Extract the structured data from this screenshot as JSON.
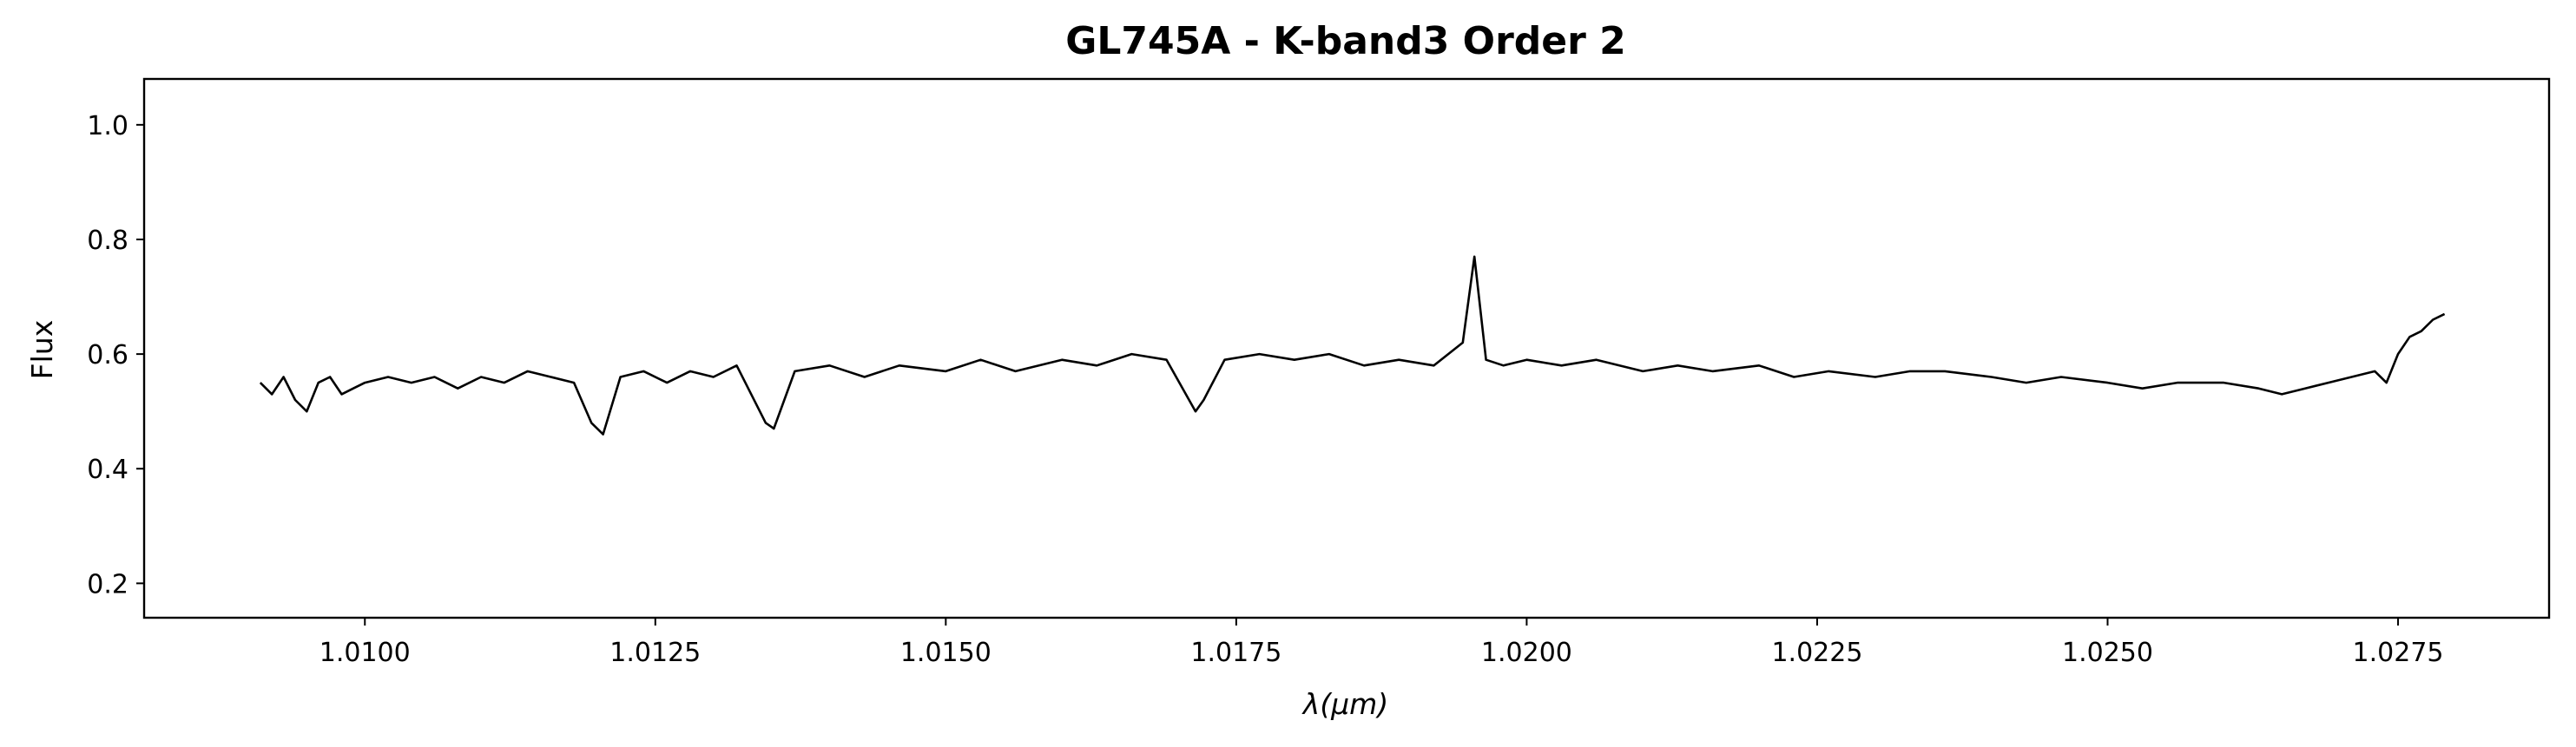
{
  "chart_data": {
    "type": "line",
    "title": "GL745A - K-band3 Order 2",
    "xlabel_symbol": "λ",
    "xlabel_unit": "(μm)",
    "ylabel": "Flux",
    "xlim": [
      1.0081,
      1.0288
    ],
    "ylim": [
      0.14,
      1.08
    ],
    "xticks": [
      1.01,
      1.0125,
      1.015,
      1.0175,
      1.02,
      1.0225,
      1.025,
      1.0275
    ],
    "xtick_labels": [
      "1.0100",
      "1.0125",
      "1.0150",
      "1.0175",
      "1.0200",
      "1.0225",
      "1.0250",
      "1.0275"
    ],
    "yticks": [
      0.2,
      0.4,
      0.6,
      0.8,
      1.0
    ],
    "ytick_labels": [
      "0.2",
      "0.4",
      "0.6",
      "0.8",
      "1.0"
    ],
    "grid": false,
    "line_color": "#000000",
    "series": [
      {
        "x": [
          1.0091,
          1.0092,
          1.0093,
          1.0094,
          1.0095,
          1.0096,
          1.0097,
          1.0098,
          1.0099,
          1.01,
          1.0102,
          1.0104,
          1.0106,
          1.0108,
          1.011,
          1.0112,
          1.0114,
          1.0116,
          1.0118,
          1.01195,
          1.01205,
          1.0122,
          1.0124,
          1.0126,
          1.0128,
          1.013,
          1.0132,
          1.01345,
          1.01352,
          1.0137,
          1.014,
          1.0143,
          1.0146,
          1.015,
          1.0153,
          1.0156,
          1.016,
          1.0163,
          1.0166,
          1.0169,
          1.01715,
          1.01722,
          1.0174,
          1.0177,
          1.018,
          1.0183,
          1.0186,
          1.0189,
          1.0192,
          1.01945,
          1.01955,
          1.01965,
          1.0198,
          1.02,
          1.0203,
          1.0206,
          1.021,
          1.0213,
          1.0216,
          1.022,
          1.0223,
          1.0226,
          1.023,
          1.0233,
          1.0236,
          1.024,
          1.0243,
          1.0246,
          1.025,
          1.0253,
          1.0256,
          1.026,
          1.0263,
          1.0265,
          1.0267,
          1.0269,
          1.0271,
          1.0273,
          1.0274,
          1.0275,
          1.0276,
          1.0277,
          1.0278,
          1.0279
        ],
        "y": [
          0.55,
          0.53,
          0.56,
          0.52,
          0.5,
          0.55,
          0.56,
          0.53,
          0.54,
          0.55,
          0.56,
          0.55,
          0.56,
          0.54,
          0.56,
          0.55,
          0.57,
          0.56,
          0.55,
          0.48,
          0.46,
          0.56,
          0.57,
          0.55,
          0.57,
          0.56,
          0.58,
          0.48,
          0.47,
          0.57,
          0.58,
          0.56,
          0.58,
          0.57,
          0.59,
          0.57,
          0.59,
          0.58,
          0.6,
          0.59,
          0.5,
          0.52,
          0.59,
          0.6,
          0.59,
          0.6,
          0.58,
          0.59,
          0.58,
          0.62,
          0.77,
          0.59,
          0.58,
          0.59,
          0.58,
          0.59,
          0.57,
          0.58,
          0.57,
          0.58,
          0.56,
          0.57,
          0.56,
          0.57,
          0.57,
          0.56,
          0.55,
          0.56,
          0.55,
          0.54,
          0.55,
          0.55,
          0.54,
          0.53,
          0.54,
          0.55,
          0.56,
          0.57,
          0.55,
          0.6,
          0.63,
          0.64,
          0.66,
          0.67
        ]
      }
    ]
  }
}
